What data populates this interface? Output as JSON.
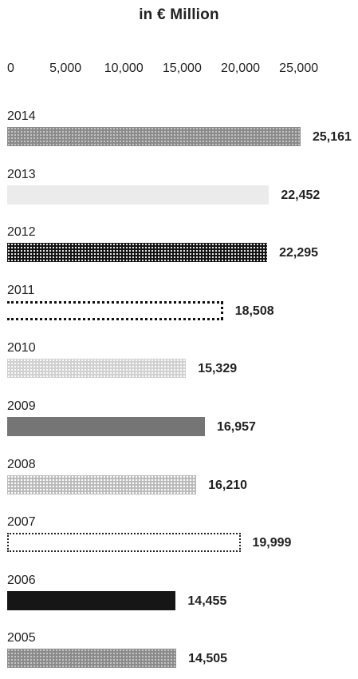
{
  "chart_data": {
    "type": "bar",
    "orientation": "horizontal",
    "title": "in € Million",
    "xlim": [
      0,
      25000
    ],
    "xticks": [
      "0",
      "5,000",
      "10,000",
      "15,000",
      "20,000",
      "25,000"
    ],
    "categories": [
      "2014",
      "2013",
      "2012",
      "2011",
      "2010",
      "2009",
      "2008",
      "2007",
      "2006",
      "2005"
    ],
    "values": [
      25161,
      22452,
      22295,
      18508,
      15329,
      16957,
      16210,
      19999,
      14455,
      14505
    ],
    "value_labels": [
      "25,161",
      "22,452",
      "22,295",
      "18,508",
      "15,329",
      "16,957",
      "16,210",
      "19,999",
      "14,455",
      "14,505"
    ],
    "patterns": [
      "dots-gray",
      "light",
      "dots-dark",
      "dotted-outline",
      "dots-light",
      "solid-gray",
      "dots-mid",
      "thin-dotted-outline",
      "solid-dark",
      "dots-gray"
    ]
  }
}
